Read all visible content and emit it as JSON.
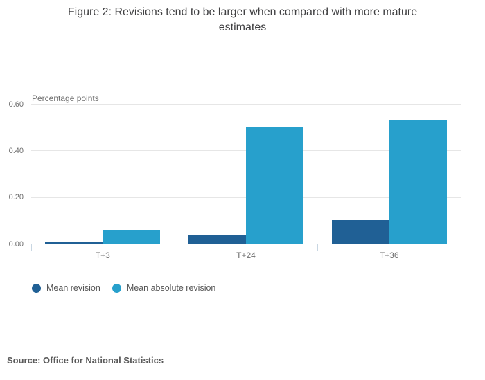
{
  "header": {
    "title": "Figure 2: Revisions tend to be larger when compared with more mature estimates"
  },
  "chart_data": {
    "type": "bar",
    "title": "Figure 2: Revisions tend to be larger when compared with more mature estimates",
    "categories": [
      "T+3",
      "T+24",
      "T+36"
    ],
    "series": [
      {
        "name": "Mean revision",
        "color": "#206095",
        "values": [
          0.01,
          0.04,
          0.1
        ]
      },
      {
        "name": "Mean absolute revision",
        "color": "#27A0CC",
        "values": [
          0.06,
          0.5,
          0.53
        ]
      }
    ],
    "xlabel": "",
    "ylabel": "Percentage points",
    "ylim": [
      0,
      0.6
    ],
    "yticks": [
      0,
      0.2,
      0.4,
      0.6
    ],
    "ytick_labels": [
      "0.00",
      "0.20",
      "0.40",
      "0.60"
    ],
    "grid": true,
    "legend_position": "bottom"
  },
  "footer": {
    "source": "Source: Office for National Statistics"
  },
  "colors": {
    "series_dark": "#206095",
    "series_light": "#27A0CC",
    "axis": "#c8d6e2",
    "gridline": "#e6e6e6",
    "title_text": "#404042",
    "tick_text": "#6e6e6e",
    "legend_text": "#555555",
    "source_text": "#5a5a5a"
  }
}
